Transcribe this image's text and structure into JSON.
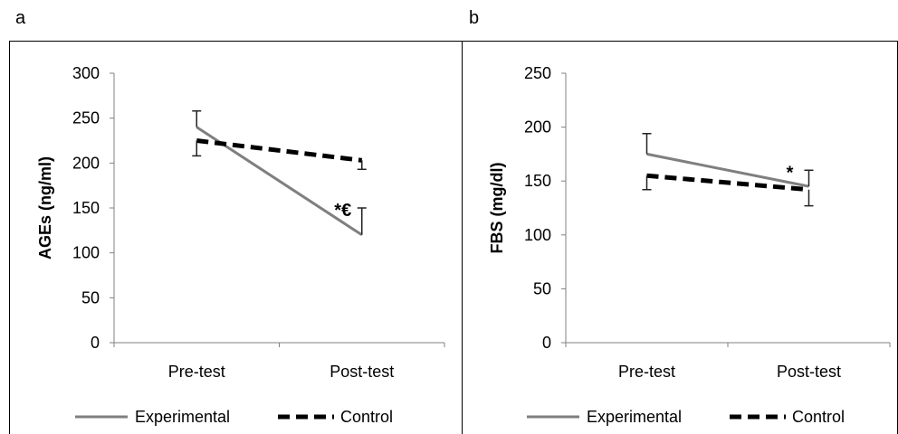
{
  "chart_data": [
    {
      "panel_label": "a",
      "type": "line",
      "title": "",
      "xlabel": "",
      "ylabel": "AGEs (ng/ml)",
      "categories": [
        "Pre-test",
        "Post-test"
      ],
      "ylim": [
        0,
        300
      ],
      "yticks": [
        0,
        50,
        100,
        150,
        200,
        250,
        300
      ],
      "grid": false,
      "legend": "bottom",
      "series": [
        {
          "name": "Experimental",
          "values": [
            240,
            120
          ],
          "error": [
            18,
            30
          ],
          "error_direction": "up",
          "color": "#7f7f7f",
          "line_style": "solid"
        },
        {
          "name": "Control",
          "values": [
            225,
            203
          ],
          "error": [
            17,
            10
          ],
          "error_direction": "down",
          "color": "#000000",
          "line_style": "dashed"
        }
      ],
      "annotations": [
        {
          "text": "*€",
          "series": "Experimental",
          "category": "Post-test"
        }
      ]
    },
    {
      "panel_label": "b",
      "type": "line",
      "title": "",
      "xlabel": "",
      "ylabel": "FBS (mg/dl)",
      "categories": [
        "Pre-test",
        "Post-test"
      ],
      "ylim": [
        0,
        250
      ],
      "yticks": [
        0,
        50,
        100,
        150,
        200,
        250
      ],
      "grid": false,
      "legend": "bottom",
      "series": [
        {
          "name": "Experimental",
          "values": [
            175,
            145
          ],
          "error": [
            19,
            15
          ],
          "error_direction": "up",
          "color": "#7f7f7f",
          "line_style": "solid"
        },
        {
          "name": "Control",
          "values": [
            155,
            142
          ],
          "error": [
            13,
            15
          ],
          "error_direction": "down",
          "color": "#000000",
          "line_style": "dashed"
        }
      ],
      "annotations": [
        {
          "text": "*",
          "series": "Experimental",
          "category": "Post-test"
        }
      ]
    }
  ]
}
